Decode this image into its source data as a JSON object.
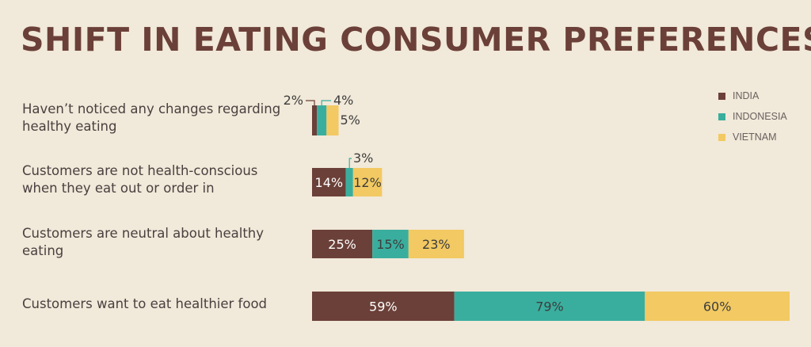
{
  "title": "SHIFT IN EATING CONSUMER PREFERENCES",
  "colors": {
    "india": "#6b4038",
    "indonesia": "#3aae9e",
    "vietnam": "#f2c962",
    "background": "#f1e9d9"
  },
  "legend": [
    {
      "label": "INDIA",
      "color": "#6b4038"
    },
    {
      "label": "INDONESIA",
      "color": "#3aae9e"
    },
    {
      "label": "VIETNAM",
      "color": "#f2c962"
    }
  ],
  "chart_data": {
    "type": "bar",
    "orientation": "horizontal",
    "stacked": true,
    "grid": false,
    "legend_position": "top-right",
    "categories": [
      "Haven’t noticed any changes regarding healthy eating",
      "Customers are not health-conscious when they eat out or order in",
      "Customers are neutral about healthy eating",
      "Customers want to eat healthier food"
    ],
    "series": [
      {
        "name": "INDIA",
        "values": [
          2,
          14,
          25,
          59
        ],
        "labels": [
          "2%",
          "14%",
          "25%",
          "59%"
        ]
      },
      {
        "name": "INDONESIA",
        "values": [
          4,
          3,
          15,
          79
        ],
        "labels": [
          "4%",
          "3%",
          "15%",
          "79%"
        ]
      },
      {
        "name": "VIETNAM",
        "values": [
          5,
          12,
          23,
          60
        ],
        "labels": [
          "5%",
          "12%",
          "23%",
          "60%"
        ]
      }
    ]
  }
}
